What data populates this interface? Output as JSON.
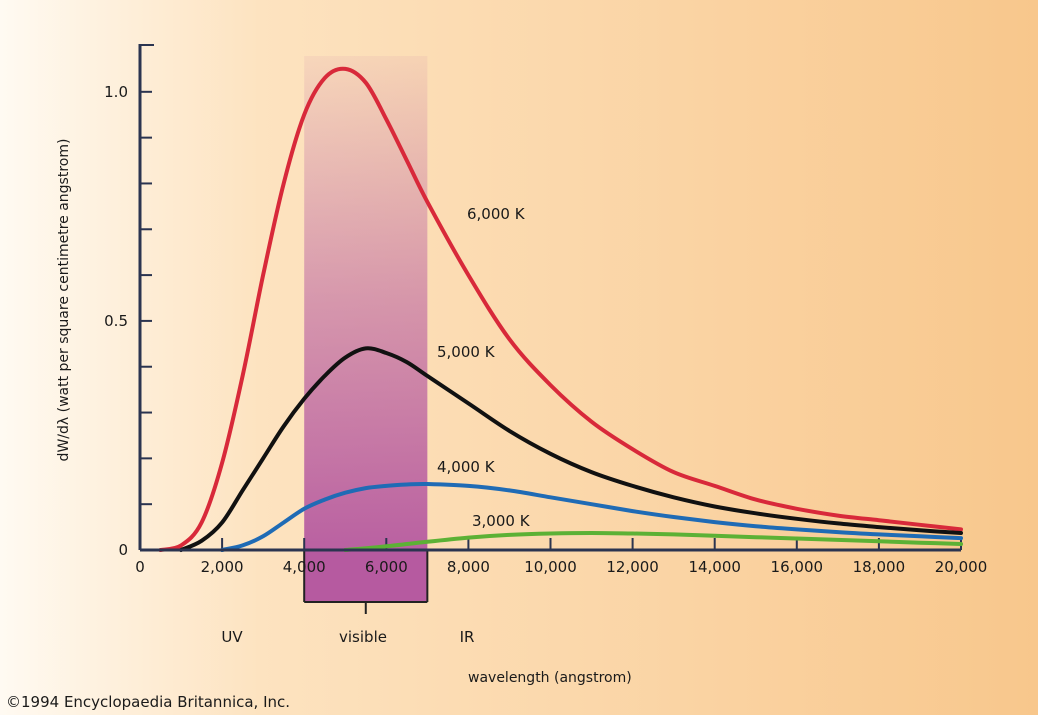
{
  "chart_data": {
    "type": "line",
    "title": "",
    "xlabel": "wavelength (angstrom)",
    "ylabel": "dW/dλ (watt per square centimetre angstrom)",
    "xlim": [
      0,
      20000
    ],
    "ylim": [
      0,
      1.1
    ],
    "x_ticks": [
      0,
      2000,
      4000,
      6000,
      8000,
      10000,
      12000,
      14000,
      16000,
      18000,
      20000
    ],
    "x_tick_labels": [
      "0",
      "2,000",
      "4,000",
      "6,000",
      "8,000",
      "10,000",
      "12,000",
      "14,000",
      "16,000",
      "18,000",
      "20,000"
    ],
    "y_ticks": [
      0,
      0.5,
      1.0
    ],
    "y_tick_labels": [
      "0",
      "0.5",
      "1.0"
    ],
    "y_minor_step": 0.1,
    "grid": false,
    "legend": "none",
    "series": [
      {
        "name": "6,000 K",
        "color": "#d8293a",
        "x": [
          500,
          1000,
          1500,
          2000,
          2500,
          3000,
          3500,
          4000,
          4500,
          5000,
          5500,
          6000,
          6500,
          7000,
          8000,
          9000,
          10000,
          11000,
          12000,
          13000,
          14000,
          15000,
          16000,
          17000,
          18000,
          19000,
          20000
        ],
        "y": [
          0,
          0.01,
          0.06,
          0.19,
          0.38,
          0.6,
          0.8,
          0.95,
          1.03,
          1.05,
          1.02,
          0.94,
          0.85,
          0.76,
          0.6,
          0.46,
          0.36,
          0.28,
          0.22,
          0.17,
          0.14,
          0.11,
          0.09,
          0.075,
          0.065,
          0.055,
          0.045
        ]
      },
      {
        "name": "5,000 K",
        "color": "#111111",
        "x": [
          1000,
          1500,
          2000,
          2500,
          3000,
          3500,
          4000,
          4500,
          5000,
          5500,
          6000,
          6500,
          7000,
          8000,
          9000,
          10000,
          11000,
          12000,
          13000,
          14000,
          15000,
          16000,
          17000,
          18000,
          19000,
          20000
        ],
        "y": [
          0,
          0.02,
          0.06,
          0.13,
          0.2,
          0.27,
          0.33,
          0.38,
          0.42,
          0.44,
          0.43,
          0.41,
          0.38,
          0.32,
          0.26,
          0.21,
          0.17,
          0.14,
          0.115,
          0.095,
          0.08,
          0.068,
          0.058,
          0.05,
          0.043,
          0.037
        ]
      },
      {
        "name": "4,000 K",
        "color": "#1f6bb5",
        "x": [
          2000,
          2500,
          3000,
          3500,
          4000,
          4500,
          5000,
          5500,
          6000,
          6500,
          7000,
          8000,
          9000,
          10000,
          11000,
          12000,
          13000,
          14000,
          15000,
          16000,
          17000,
          18000,
          19000,
          20000
        ],
        "y": [
          0,
          0.01,
          0.03,
          0.06,
          0.09,
          0.11,
          0.125,
          0.135,
          0.14,
          0.143,
          0.144,
          0.14,
          0.13,
          0.115,
          0.1,
          0.085,
          0.072,
          0.061,
          0.052,
          0.045,
          0.039,
          0.034,
          0.03,
          0.026
        ]
      },
      {
        "name": "3,000 K",
        "color": "#5cb135",
        "x": [
          5000,
          6000,
          7000,
          8000,
          9000,
          10000,
          11000,
          12000,
          13000,
          14000,
          15000,
          16000,
          17000,
          18000,
          19000,
          20000
        ],
        "y": [
          0,
          0.008,
          0.018,
          0.027,
          0.033,
          0.036,
          0.037,
          0.036,
          0.034,
          0.031,
          0.028,
          0.025,
          0.022,
          0.019,
          0.016,
          0.013
        ]
      }
    ],
    "regions": [
      {
        "label": "UV",
        "range": [
          0,
          4000
        ]
      },
      {
        "label": "visible",
        "range": [
          4000,
          7000
        ],
        "color": "#b65aa0"
      },
      {
        "label": "IR",
        "range": [
          7000,
          20000
        ]
      }
    ],
    "background_colors": {
      "light": "#fffaf2",
      "dark": "#f8c78c"
    }
  },
  "footer": {
    "copyright": "©1994 Encyclopaedia Britannica, Inc."
  }
}
